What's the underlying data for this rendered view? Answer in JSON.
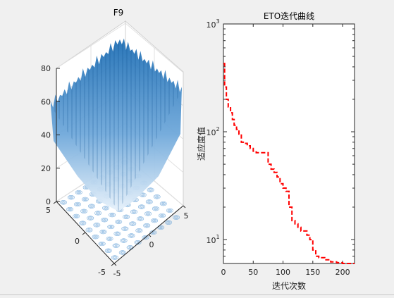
{
  "colors": {
    "background": "#f0f0f0",
    "axes_bg": "#ffffff",
    "surface_light": "#dbeaf6",
    "surface_dark": "#1f6fb5",
    "curve": "#ff0000"
  },
  "chart_data": [
    {
      "type": "surface",
      "title": "F9",
      "xlabel": "",
      "ylabel": "",
      "zlabel": "",
      "xlim": [
        -5,
        5
      ],
      "ylim": [
        -5,
        5
      ],
      "zlim": [
        0,
        80
      ],
      "x_ticks": [
        "-5",
        "0",
        "5"
      ],
      "y_ticks": [
        "-5",
        "0",
        "5"
      ],
      "z_ticks": [
        "0",
        "20",
        "40",
        "60",
        "80"
      ],
      "surface_shading": "blue gradient with contour projection on floor",
      "grid": true
    },
    {
      "type": "line",
      "title": "ETO迭代曲线",
      "xlabel": "迭代次数",
      "ylabel": "适应度值",
      "xlim": [
        0,
        220
      ],
      "ylim": [
        6,
        1000
      ],
      "y_scale": "log",
      "x_ticks": [
        "0",
        "50",
        "100",
        "150",
        "200"
      ],
      "y_ticks": [
        {
          "base": "10",
          "exp": "1",
          "value": 10
        },
        {
          "base": "10",
          "exp": "2",
          "value": 100
        },
        {
          "base": "10",
          "exp": "3",
          "value": 1000
        }
      ],
      "line_style": "dashed",
      "grid": false,
      "series": [
        {
          "x": [
            0,
            2,
            5,
            8,
            12,
            15,
            18,
            22,
            26,
            30,
            35,
            40,
            45,
            50,
            55,
            60,
            65,
            70,
            75,
            80,
            85,
            90,
            95,
            100,
            105,
            110,
            115,
            120,
            125,
            130,
            135,
            140,
            145,
            150,
            155,
            160,
            170,
            180,
            190,
            200,
            210,
            220
          ],
          "y": [
            430,
            260,
            200,
            170,
            150,
            130,
            115,
            105,
            95,
            80,
            78,
            74,
            70,
            66,
            64,
            64,
            64,
            64,
            50,
            45,
            42,
            38,
            33,
            30,
            28,
            20,
            15,
            14,
            13,
            12,
            12,
            11,
            10,
            8,
            7,
            6.8,
            6.5,
            6.2,
            6.1,
            6.0,
            6.0,
            6.0
          ]
        }
      ]
    }
  ]
}
